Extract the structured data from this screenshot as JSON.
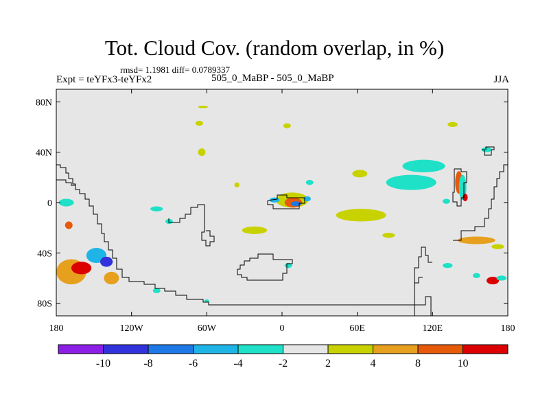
{
  "chart_data": {
    "type": "heatmap",
    "title": "Tot. Cloud Cov. (random overlap, in %)",
    "stats_text": "rmsd= 1.1981 diff= 0.0789337",
    "left_label": "Expt = teYFx3-teYFx2",
    "center_label": "505_0_MaBP - 505_0_MaBP",
    "right_label": "JJA",
    "x_ticks": [
      {
        "lon": -180,
        "label": "180"
      },
      {
        "lon": -120,
        "label": "120W"
      },
      {
        "lon": -60,
        "label": "60W"
      },
      {
        "lon": 0,
        "label": "0"
      },
      {
        "lon": 60,
        "label": "60E"
      },
      {
        "lon": 120,
        "label": "120E"
      },
      {
        "lon": 180,
        "label": "180"
      }
    ],
    "y_ticks": [
      {
        "lat": 80,
        "label": "80N"
      },
      {
        "lat": 40,
        "label": "40N"
      },
      {
        "lat": 0,
        "label": "0"
      },
      {
        "lat": -40,
        "label": "40S"
      },
      {
        "lat": -80,
        "label": "80S"
      }
    ],
    "xlim": [
      -180,
      180
    ],
    "ylim": [
      -90,
      90
    ],
    "colorbar": {
      "colors": [
        "#8c1ee6",
        "#3232dc",
        "#1e78e6",
        "#1eb4e6",
        "#1ee1c8",
        "#e6e6e6",
        "#c8d200",
        "#e6a01e",
        "#e65a0a",
        "#dc0000"
      ],
      "labels": [
        "-10",
        "-8",
        "-6",
        "-4",
        "-2",
        "2",
        "4",
        "8",
        "10"
      ]
    },
    "anomalies": [
      {
        "lon": -168,
        "lat": -55,
        "rlon": 12,
        "rlat": 10,
        "level": "4"
      },
      {
        "lon": -160,
        "lat": -52,
        "rlon": 8,
        "rlat": 5,
        "level": "10"
      },
      {
        "lon": -148,
        "lat": -42,
        "rlon": 8,
        "rlat": 6,
        "level": "-4"
      },
      {
        "lon": -140,
        "lat": -47,
        "rlon": 5,
        "rlat": 4,
        "level": "-8"
      },
      {
        "lon": -136,
        "lat": -60,
        "rlon": 6,
        "rlat": 5,
        "level": "4"
      },
      {
        "lon": -170,
        "lat": -18,
        "rlon": 3,
        "rlat": 3,
        "level": "8"
      },
      {
        "lon": -172,
        "lat": 0,
        "rlon": 6,
        "rlat": 3,
        "level": "-2"
      },
      {
        "lon": -100,
        "lat": -5,
        "rlon": 5,
        "rlat": 2,
        "level": "-2"
      },
      {
        "lon": -90,
        "lat": -15,
        "rlon": 3,
        "rlat": 2,
        "level": "-2"
      },
      {
        "lon": -64,
        "lat": 40,
        "rlon": 3,
        "rlat": 3,
        "level": "2"
      },
      {
        "lon": -66,
        "lat": 63,
        "rlon": 3,
        "rlat": 2,
        "level": "2"
      },
      {
        "lon": -63,
        "lat": 76,
        "rlon": 4,
        "rlat": 1,
        "level": "2"
      },
      {
        "lon": 8,
        "lat": 2,
        "rlon": 13,
        "rlat": 6,
        "level": "2"
      },
      {
        "lon": 9,
        "lat": 0,
        "rlon": 7,
        "rlat": 4,
        "level": "8"
      },
      {
        "lon": 11,
        "lat": -1,
        "rlon": 4,
        "rlat": 2,
        "level": "-6"
      },
      {
        "lon": -6,
        "lat": 2,
        "rlon": 4,
        "rlat": 2,
        "level": "-4"
      },
      {
        "lon": 20,
        "lat": 3,
        "rlon": 3,
        "rlat": 2,
        "level": "-4"
      },
      {
        "lon": 4,
        "lat": 61,
        "rlon": 3,
        "rlat": 2,
        "level": "2"
      },
      {
        "lon": -36,
        "lat": 14,
        "rlon": 2,
        "rlat": 2,
        "level": "2"
      },
      {
        "lon": 22,
        "lat": 16,
        "rlon": 3,
        "rlat": 2,
        "level": "-2"
      },
      {
        "lon": -22,
        "lat": -22,
        "rlon": 10,
        "rlat": 3,
        "level": "2"
      },
      {
        "lon": 63,
        "lat": -10,
        "rlon": 20,
        "rlat": 5,
        "level": "2"
      },
      {
        "lon": 62,
        "lat": 23,
        "rlon": 6,
        "rlat": 3,
        "level": "2"
      },
      {
        "lon": 103,
        "lat": 16,
        "rlon": 20,
        "rlat": 6,
        "level": "-2"
      },
      {
        "lon": 113,
        "lat": 29,
        "rlon": 17,
        "rlat": 5,
        "level": "-2"
      },
      {
        "lon": 131,
        "lat": 1,
        "rlon": 3,
        "rlat": 2,
        "level": "-2"
      },
      {
        "lon": 141,
        "lat": 16,
        "rlon": 3,
        "rlat": 9,
        "level": "8"
      },
      {
        "lon": 144,
        "lat": 12,
        "rlon": 3,
        "rlat": 10,
        "level": "-2"
      },
      {
        "lon": 146,
        "lat": 4,
        "rlon": 2,
        "rlat": 3,
        "level": "10"
      },
      {
        "lon": 136,
        "lat": 62,
        "rlon": 4,
        "rlat": 2,
        "level": "2"
      },
      {
        "lon": 163,
        "lat": 42,
        "rlon": 4,
        "rlat": 2,
        "level": "-2"
      },
      {
        "lon": 85,
        "lat": -26,
        "rlon": 5,
        "rlat": 2,
        "level": "2"
      },
      {
        "lon": 155,
        "lat": -30,
        "rlon": 15,
        "rlat": 3,
        "level": "4"
      },
      {
        "lon": 172,
        "lat": -35,
        "rlon": 5,
        "rlat": 2,
        "level": "2"
      },
      {
        "lon": 132,
        "lat": -50,
        "rlon": 4,
        "rlat": 2,
        "level": "-2"
      },
      {
        "lon": 168,
        "lat": -62,
        "rlon": 5,
        "rlat": 3,
        "level": "10"
      },
      {
        "lon": 175,
        "lat": -60,
        "rlon": 4,
        "rlat": 2,
        "level": "-2"
      },
      {
        "lon": 155,
        "lat": -58,
        "rlon": 3,
        "rlat": 2,
        "level": "-2"
      },
      {
        "lon": -100,
        "lat": -70,
        "rlon": 3,
        "rlat": 2,
        "level": "-2"
      },
      {
        "lon": -60,
        "lat": -78,
        "rlon": 2,
        "rlat": 1,
        "level": "-2"
      },
      {
        "lon": 5,
        "lat": -50,
        "rlon": 3,
        "rlat": 2,
        "level": "-2"
      }
    ]
  }
}
